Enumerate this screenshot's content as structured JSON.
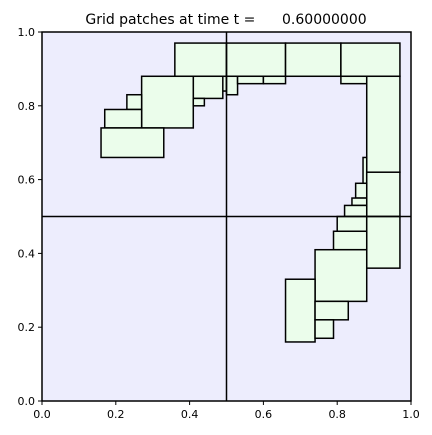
{
  "chart_data": {
    "type": "rectangles",
    "title": "Grid patches at time t =      0.60000000",
    "xlim": [
      0.0,
      1.0
    ],
    "ylim": [
      0.0,
      1.0
    ],
    "xticks": [
      "0.0",
      "0.2",
      "0.4",
      "0.6",
      "0.8",
      "1.0"
    ],
    "yticks": [
      "0.0",
      "0.2",
      "0.4",
      "0.6",
      "0.8",
      "1.0"
    ],
    "background_color": "#ededfd",
    "patch_fill_color": "#ebfdeb",
    "edge_color": "#000000",
    "coarse_grid_lines": {
      "x": [
        0.5
      ],
      "y": [
        0.5
      ]
    },
    "patches": [
      {
        "x0": 0.36,
        "x1": 0.5,
        "y0": 0.88,
        "y1": 0.97
      },
      {
        "x0": 0.5,
        "x1": 0.66,
        "y0": 0.88,
        "y1": 0.97
      },
      {
        "x0": 0.66,
        "x1": 0.81,
        "y0": 0.88,
        "y1": 0.97
      },
      {
        "x0": 0.81,
        "x1": 0.97,
        "y0": 0.88,
        "y1": 0.97
      },
      {
        "x0": 0.41,
        "x1": 0.5,
        "y0": 0.84,
        "y1": 0.88
      },
      {
        "x0": 0.41,
        "x1": 0.49,
        "y0": 0.82,
        "y1": 0.88
      },
      {
        "x0": 0.5,
        "x1": 0.53,
        "y0": 0.83,
        "y1": 0.88
      },
      {
        "x0": 0.53,
        "x1": 0.6,
        "y0": 0.86,
        "y1": 0.88
      },
      {
        "x0": 0.6,
        "x1": 0.66,
        "y0": 0.86,
        "y1": 0.88
      },
      {
        "x0": 0.81,
        "x1": 0.88,
        "y0": 0.86,
        "y1": 0.88
      },
      {
        "x0": 0.27,
        "x1": 0.41,
        "y0": 0.74,
        "y1": 0.88
      },
      {
        "x0": 0.41,
        "x1": 0.44,
        "y0": 0.8,
        "y1": 0.82
      },
      {
        "x0": 0.23,
        "x1": 0.27,
        "y0": 0.79,
        "y1": 0.83
      },
      {
        "x0": 0.17,
        "x1": 0.27,
        "y0": 0.74,
        "y1": 0.79
      },
      {
        "x0": 0.16,
        "x1": 0.33,
        "y0": 0.66,
        "y1": 0.74
      },
      {
        "x0": 0.88,
        "x1": 0.97,
        "y0": 0.62,
        "y1": 0.88
      },
      {
        "x0": 0.87,
        "x1": 0.88,
        "y0": 0.59,
        "y1": 0.66
      },
      {
        "x0": 0.88,
        "x1": 0.97,
        "y0": 0.5,
        "y1": 0.62
      },
      {
        "x0": 0.85,
        "x1": 0.88,
        "y0": 0.55,
        "y1": 0.59
      },
      {
        "x0": 0.84,
        "x1": 0.88,
        "y0": 0.53,
        "y1": 0.55
      },
      {
        "x0": 0.82,
        "x1": 0.88,
        "y0": 0.5,
        "y1": 0.53
      },
      {
        "x0": 0.8,
        "x1": 0.88,
        "y0": 0.46,
        "y1": 0.5
      },
      {
        "x0": 0.88,
        "x1": 0.97,
        "y0": 0.36,
        "y1": 0.5
      },
      {
        "x0": 0.79,
        "x1": 0.88,
        "y0": 0.41,
        "y1": 0.46
      },
      {
        "x0": 0.74,
        "x1": 0.88,
        "y0": 0.27,
        "y1": 0.41
      },
      {
        "x0": 0.66,
        "x1": 0.74,
        "y0": 0.16,
        "y1": 0.33
      },
      {
        "x0": 0.74,
        "x1": 0.83,
        "y0": 0.22,
        "y1": 0.27
      },
      {
        "x0": 0.74,
        "x1": 0.79,
        "y0": 0.17,
        "y1": 0.22
      }
    ]
  }
}
